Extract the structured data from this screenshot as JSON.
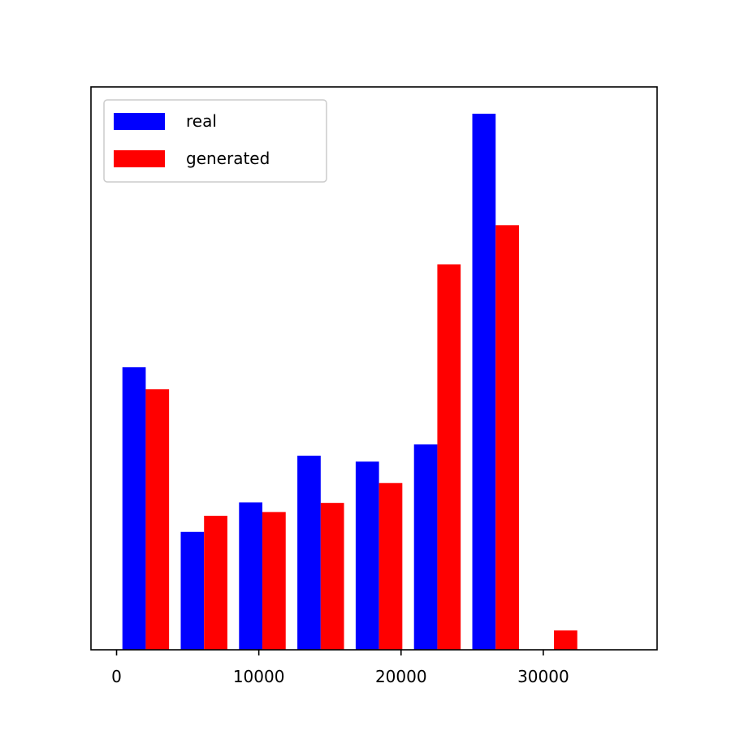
{
  "chart_data": {
    "type": "bar",
    "title": "",
    "xlabel": "",
    "ylabel": "",
    "xlim": [
      -1800,
      38000
    ],
    "ylim": [
      0,
      1.05
    ],
    "y_axis_shown": false,
    "grid": false,
    "legend_position": "top-left",
    "bin_edges": [
      0,
      4100,
      8200,
      12300,
      16400,
      20500,
      24600,
      28700,
      32800,
      36900
    ],
    "xticks": [
      0,
      10000,
      20000,
      30000
    ],
    "xtick_labels": [
      "0",
      "10000",
      "20000",
      "30000"
    ],
    "series": [
      {
        "name": "real",
        "color": "#0000ff",
        "values": [
          0.527,
          0.22,
          0.275,
          0.362,
          0.351,
          0.383,
          1.0,
          0,
          0
        ]
      },
      {
        "name": "generated",
        "color": "#ff0000",
        "values": [
          0.486,
          0.25,
          0.257,
          0.274,
          0.311,
          0.719,
          0.792,
          0.036,
          0
        ]
      }
    ]
  }
}
